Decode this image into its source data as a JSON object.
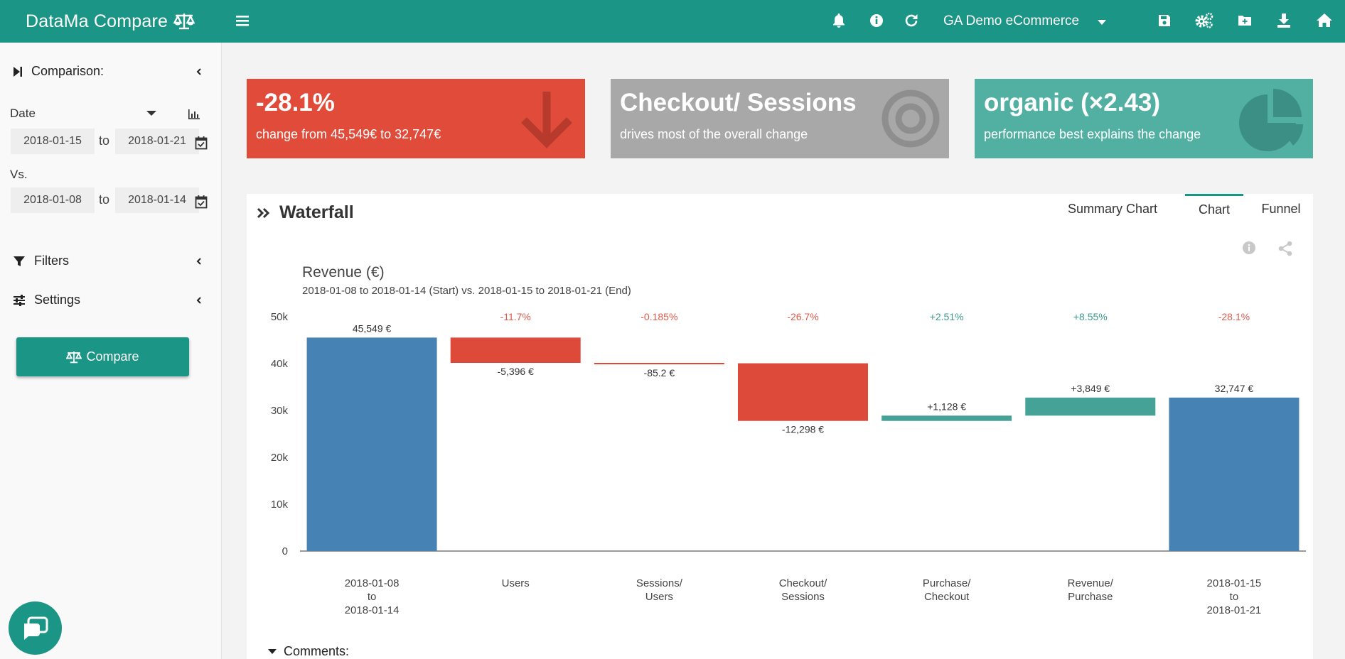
{
  "app": {
    "brand": "DataMa Compare",
    "property": "GA Demo eCommerce"
  },
  "topbar_icons": [
    "hamburger-icon",
    "bell-icon",
    "info-icon",
    "refresh-icon",
    "save-icon",
    "settings-icon",
    "folder-add-icon",
    "download-icon",
    "home-icon"
  ],
  "sidebar": {
    "comparison_label": "Comparison:",
    "date_label": "Date",
    "period_start": "2018-01-15",
    "period_end": "2018-01-21",
    "to_label": "to",
    "vs_label": "Vs.",
    "vs_start": "2018-01-08",
    "vs_end": "2018-01-14",
    "filters_label": "Filters",
    "settings_label": "Settings",
    "compare_button": "Compare"
  },
  "cards": [
    {
      "big": "-28.1%",
      "small": "change from 45,549€ to 32,747€",
      "color": "#e04b3a",
      "icon": "arrow-down-icon"
    },
    {
      "big": "Checkout/ Sessions",
      "small": "drives most of the overall change",
      "color": "#a8a8a8",
      "icon": "target-icon"
    },
    {
      "big": "organic (×2.43)",
      "small": "performance best explains the change",
      "color": "#52b0a2",
      "icon": "pie-chart-icon"
    }
  ],
  "panel": {
    "title": "Waterfall",
    "tabs": [
      "Summary Chart",
      "Chart",
      "Funnel"
    ],
    "active_tab": "Chart",
    "comments_label": "Comments:"
  },
  "chart_data": {
    "type": "bar",
    "subtype": "waterfall",
    "title": "Revenue (€)",
    "subtitle": "2018-01-08 to 2018-01-14 (Start) vs. 2018-01-15 to 2018-01-21 (End)",
    "ylim": [
      0,
      50000
    ],
    "yticks": [
      "0",
      "10k",
      "20k",
      "30k",
      "40k",
      "50k"
    ],
    "categories": [
      [
        "2018-01-08",
        "to",
        "2018-01-14"
      ],
      [
        "Users"
      ],
      [
        "Sessions/",
        "Users"
      ],
      [
        "Checkout/",
        "Sessions"
      ],
      [
        "Purchase/",
        "Checkout"
      ],
      [
        "Revenue/",
        "Purchase"
      ],
      [
        "2018-01-15",
        "to",
        "2018-01-21"
      ]
    ],
    "steps": [
      {
        "kind": "total",
        "value": 45549,
        "label": "45,549 €",
        "pct": ""
      },
      {
        "kind": "delta",
        "value": -5396,
        "label": "-5,396 €",
        "pct": "-11.7%"
      },
      {
        "kind": "delta",
        "value": -85.2,
        "label": "-85.2 €",
        "pct": "-0.185%"
      },
      {
        "kind": "delta",
        "value": -12298,
        "label": "-12,298 €",
        "pct": "-26.7%"
      },
      {
        "kind": "delta",
        "value": 1128,
        "label": "+1,128 €",
        "pct": "+2.51%"
      },
      {
        "kind": "delta",
        "value": 3849,
        "label": "+3,849 €",
        "pct": "+8.55%"
      },
      {
        "kind": "total",
        "value": 32747,
        "label": "32,747 €",
        "pct": "-28.1%"
      }
    ],
    "colors": {
      "total": "#4682b4",
      "negative": "#de4a39",
      "positive": "#44a296",
      "neg_text": "#e05a4a",
      "pos_text": "#3a9a8c"
    }
  }
}
